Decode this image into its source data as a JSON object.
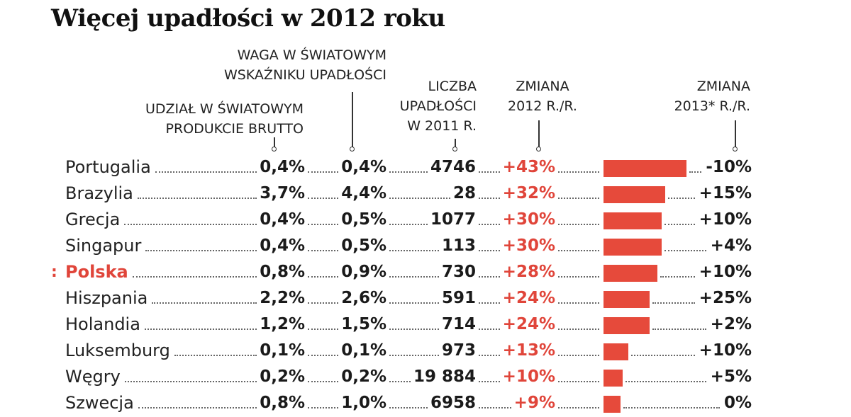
{
  "title": "Więcej upadłości w 2012 roku",
  "chart_data": {
    "type": "table",
    "title": "Więcej upadłości w 2012 roku",
    "columns": [
      "UDZIAŁ W ŚWIATOWYM PRODUKCIE BRUTTO",
      "WAGA W ŚWIATOWYM WSKAŹNIKU UPADŁOŚCI",
      "LICZBA UPADŁOŚCI W 2011 R.",
      "ZMIANA 2012 R./R.",
      "ZMIANA 2013* R./R."
    ],
    "headers": {
      "gdp_share": [
        "UDZIAŁ W ŚWIATOWYM",
        "PRODUKCIE BRUTTO"
      ],
      "index_weight": [
        "WAGA W ŚWIATOWYM",
        "WSKAŹNIKU UPADŁOŚCI"
      ],
      "count_2011": [
        "LICZBA",
        "UPADŁOŚCI",
        "W 2011 R."
      ],
      "change_2012": [
        "ZMIANA",
        "2012 R./R."
      ],
      "change_2013": [
        "ZMIANA",
        "2013* R./R."
      ]
    },
    "highlight_color": "#e0453a",
    "bar_color": "#e64a3b",
    "bar_max": 43,
    "rows": [
      {
        "country": "Portugalia",
        "gdp_share": "0,4%",
        "index_weight": "0,4%",
        "count_2011": "4746",
        "change_2012": "+43%",
        "change_2012_value": 43,
        "change_2013": "-10%",
        "highlight": false
      },
      {
        "country": "Brazylia",
        "gdp_share": "3,7%",
        "index_weight": "4,4%",
        "count_2011": "28",
        "change_2012": "+32%",
        "change_2012_value": 32,
        "change_2013": "+15%",
        "highlight": false
      },
      {
        "country": "Grecja",
        "gdp_share": "0,4%",
        "index_weight": "0,5%",
        "count_2011": "1077",
        "change_2012": "+30%",
        "change_2012_value": 30,
        "change_2013": "+10%",
        "highlight": false
      },
      {
        "country": "Singapur",
        "gdp_share": "0,4%",
        "index_weight": "0,5%",
        "count_2011": "113",
        "change_2012": "+30%",
        "change_2012_value": 30,
        "change_2013": "+4%",
        "highlight": false
      },
      {
        "country": "Polska",
        "gdp_share": "0,8%",
        "index_weight": "0,9%",
        "count_2011": "730",
        "change_2012": "+28%",
        "change_2012_value": 28,
        "change_2013": "+10%",
        "highlight": true
      },
      {
        "country": "Hiszpania",
        "gdp_share": "2,2%",
        "index_weight": "2,6%",
        "count_2011": "591",
        "change_2012": "+24%",
        "change_2012_value": 24,
        "change_2013": "+25%",
        "highlight": false
      },
      {
        "country": "Holandia",
        "gdp_share": "1,2%",
        "index_weight": "1,5%",
        "count_2011": "714",
        "change_2012": "+24%",
        "change_2012_value": 24,
        "change_2013": "+2%",
        "highlight": false
      },
      {
        "country": "Luksemburg",
        "gdp_share": "0,1%",
        "index_weight": "0,1%",
        "count_2011": "973",
        "change_2012": "+13%",
        "change_2012_value": 13,
        "change_2013": "+10%",
        "highlight": false
      },
      {
        "country": "Węgry",
        "gdp_share": "0,2%",
        "index_weight": "0,2%",
        "count_2011": "19 884",
        "change_2012": "+10%",
        "change_2012_value": 10,
        "change_2013": "+5%",
        "highlight": false
      },
      {
        "country": "Szwecja",
        "gdp_share": "0,8%",
        "index_weight": "1,0%",
        "count_2011": "6958",
        "change_2012": "+9%",
        "change_2012_value": 9,
        "change_2013": "0%",
        "highlight": false
      }
    ]
  }
}
